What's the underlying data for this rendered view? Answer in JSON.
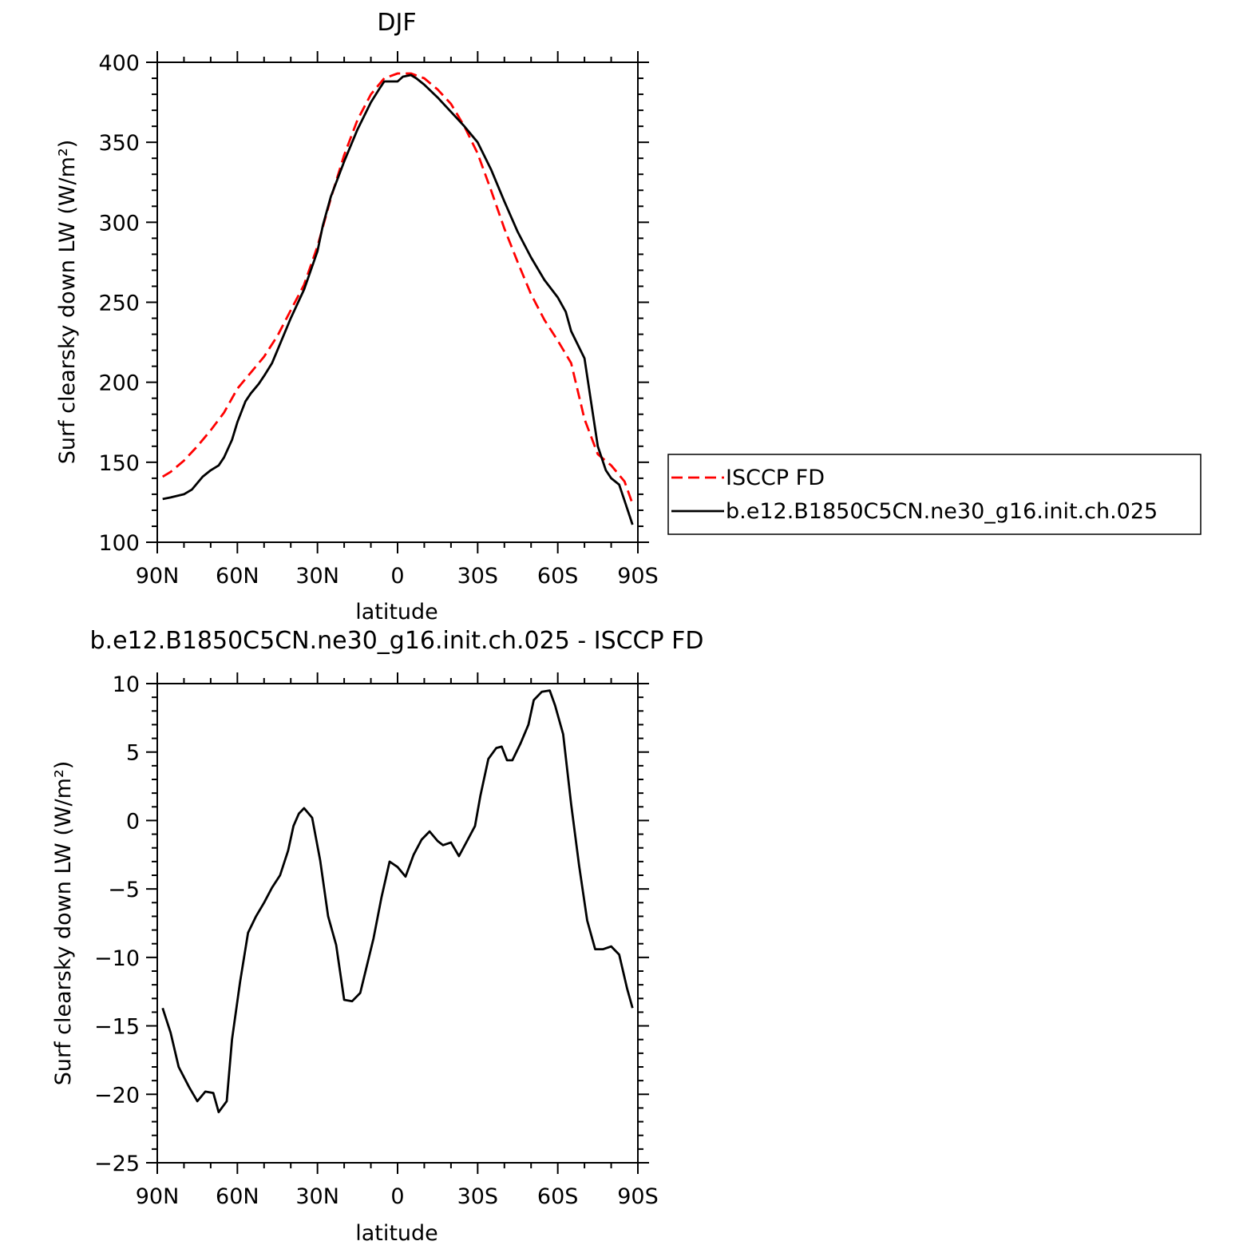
{
  "chart_data": [
    {
      "type": "line",
      "title": "DJF",
      "xlabel": "latitude",
      "ylabel": "Surf clearsky down LW (W/m²)",
      "xlim": [
        90,
        -90
      ],
      "ylim": [
        100,
        400
      ],
      "x_ticks": [
        90,
        60,
        30,
        0,
        -30,
        -60,
        -90
      ],
      "x_tick_labels": [
        "90N",
        "60N",
        "30N",
        "0",
        "30S",
        "60S",
        "90S"
      ],
      "y_ticks": [
        100,
        150,
        200,
        250,
        300,
        350,
        400
      ],
      "y_tick_labels": [
        "100",
        "150",
        "200",
        "250",
        "300",
        "350",
        "400"
      ],
      "legend": "right",
      "grid": false,
      "series": [
        {
          "name": "ISCCP FD",
          "color": "#ff0000",
          "dash": true,
          "x": [
            88,
            85,
            80,
            75,
            70,
            65,
            60,
            55,
            50,
            45,
            40,
            35,
            30,
            25,
            20,
            15,
            10,
            5,
            0,
            -5,
            -10,
            -15,
            -20,
            -25,
            -30,
            -35,
            -40,
            -45,
            -50,
            -55,
            -60,
            -65,
            -70,
            -75,
            -80,
            -85,
            -88
          ],
          "y": [
            141,
            144,
            151,
            160,
            170,
            181,
            196,
            206,
            216,
            229,
            245,
            261,
            285,
            315,
            342,
            364,
            380,
            390,
            393,
            393,
            390,
            383,
            374,
            360,
            343,
            320,
            296,
            275,
            255,
            239,
            226,
            212,
            177,
            155,
            148,
            138,
            124
          ]
        },
        {
          "name": "b.e12.B1850C5CN.ne30_g16.init.ch.025",
          "color": "#000000",
          "dash": false,
          "x": [
            88,
            85,
            80,
            77,
            75,
            73,
            70,
            67,
            65,
            62,
            60,
            57,
            55,
            52,
            50,
            47,
            45,
            40,
            35,
            30,
            28,
            25,
            20,
            15,
            10,
            7,
            5,
            2,
            0,
            -2,
            -5,
            -7,
            -10,
            -15,
            -20,
            -25,
            -30,
            -35,
            -40,
            -45,
            -50,
            -55,
            -60,
            -63,
            -65,
            -70,
            -73,
            -75,
            -78,
            -80,
            -83,
            -85,
            -88
          ],
          "y": [
            127,
            128,
            130,
            133,
            137,
            141,
            145,
            148,
            153,
            164,
            175,
            188,
            193,
            199,
            204,
            212,
            220,
            240,
            258,
            282,
            298,
            316,
            338,
            358,
            375,
            383,
            388,
            388,
            388,
            391,
            392,
            390,
            386,
            378,
            369,
            360,
            350,
            333,
            313,
            294,
            278,
            264,
            253,
            244,
            232,
            215,
            182,
            160,
            145,
            140,
            136,
            126,
            111
          ]
        }
      ]
    },
    {
      "type": "line",
      "title": "b.e12.B1850C5CN.ne30_g16.init.ch.025 - ISCCP FD",
      "xlabel": "latitude",
      "ylabel": "Surf clearsky down LW (W/m²)",
      "xlim": [
        90,
        -90
      ],
      "ylim": [
        -25,
        10
      ],
      "x_ticks": [
        90,
        60,
        30,
        0,
        -30,
        -60,
        -90
      ],
      "x_tick_labels": [
        "90N",
        "60N",
        "30N",
        "0",
        "30S",
        "60S",
        "90S"
      ],
      "y_ticks": [
        -25,
        -20,
        -15,
        -10,
        -5,
        0,
        5,
        10
      ],
      "y_tick_labels": [
        "−25",
        "−20",
        "−15",
        "−10",
        "−5",
        "0",
        "5",
        "10"
      ],
      "grid": false,
      "series": [
        {
          "color": "#000000",
          "x": [
            88,
            85,
            82,
            78,
            75,
            72,
            69,
            67,
            64,
            62,
            59,
            56,
            53,
            50,
            47,
            44,
            41,
            39,
            37,
            35,
            32,
            29,
            26,
            23,
            20,
            17,
            14,
            12,
            9,
            6,
            3,
            0,
            -3,
            -6,
            -9,
            -12,
            -15,
            -17,
            -20,
            -23,
            -26,
            -29,
            -31,
            -34,
            -37,
            -39,
            -41,
            -43,
            -46,
            -49,
            -51,
            -54,
            -57,
            -59,
            -62,
            -65,
            -68,
            -71,
            -74,
            -77,
            -80,
            -83,
            -86,
            -88
          ],
          "y": [
            -13.7,
            -15.5,
            -18,
            -19.5,
            -20.5,
            -19.8,
            -19.9,
            -21.3,
            -20.5,
            -16,
            -11.8,
            -8.2,
            -7,
            -6,
            -4.9,
            -4,
            -2.2,
            -0.4,
            0.5,
            0.9,
            0.2,
            -2.9,
            -7,
            -9.1,
            -13.1,
            -13.2,
            -12.6,
            -11,
            -8.6,
            -5.6,
            -3,
            -3.4,
            -4.1,
            -2.5,
            -1.4,
            -0.8,
            -1.5,
            -1.8,
            -1.6,
            -2.6,
            -1.5,
            -0.4,
            1.8,
            4.5,
            5.3,
            5.4,
            4.4,
            4.4,
            5.6,
            7.0,
            8.8,
            9.4,
            9.5,
            8.4,
            6.3,
            1.2,
            -3.3,
            -7.3,
            -9.4,
            -9.4,
            -9.2,
            -9.8,
            -12.3,
            -13.7
          ]
        }
      ]
    }
  ]
}
